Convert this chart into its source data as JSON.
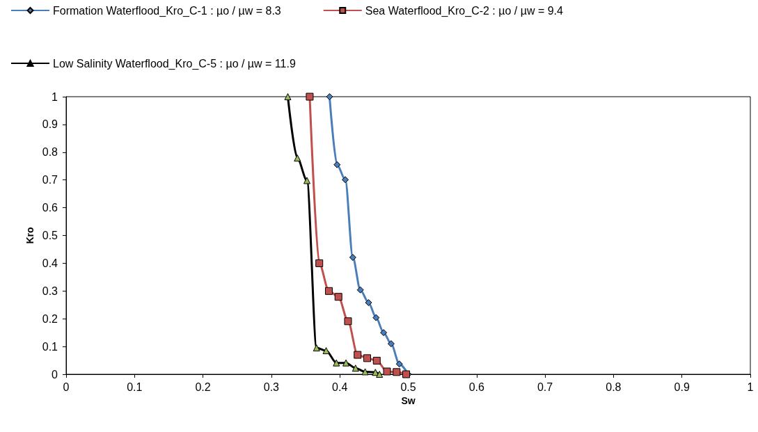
{
  "chart_data": {
    "type": "line",
    "xlabel": "Sw",
    "ylabel": "Kro",
    "xlim": [
      0,
      1
    ],
    "ylim": [
      0,
      1
    ],
    "xticks": [
      0,
      0.1,
      0.2,
      0.3,
      0.4,
      0.5,
      0.6,
      0.7,
      0.8,
      0.9,
      1
    ],
    "yticks": [
      0,
      0.1,
      0.2,
      0.3,
      0.4,
      0.5,
      0.6,
      0.7,
      0.8,
      0.9,
      1
    ],
    "grid": false,
    "legend": "top left",
    "line_style": "solid",
    "series": [
      {
        "name": "Formation Waterflood_Kro_C-1 : µo / µw = 8.3",
        "color": "#4a7ebb",
        "marker": "diamond",
        "x": [
          0.385,
          0.396,
          0.408,
          0.419,
          0.43,
          0.442,
          0.453,
          0.464,
          0.475,
          0.487,
          0.5
        ],
        "values": [
          1,
          0.755,
          0.701,
          0.421,
          0.304,
          0.258,
          0.204,
          0.15,
          0.11,
          0.037,
          0
        ]
      },
      {
        "name": "Sea Waterflood_Kro_C-2 : µo / µw = 9.4",
        "color": "#c0504d",
        "marker": "square",
        "x": [
          0.356,
          0.37,
          0.384,
          0.398,
          0.412,
          0.426,
          0.44,
          0.454,
          0.469,
          0.483,
          0.497
        ],
        "values": [
          1,
          0.4,
          0.3,
          0.279,
          0.191,
          0.07,
          0.058,
          0.049,
          0.01,
          0.008,
          0
        ]
      },
      {
        "name": "Low Salinity Waterflood_Kro_C-5 : µo / µw = 11.9",
        "color": "#000000",
        "marker": "triangle",
        "colors": [
          "#9bbb59",
          "#9bbb59",
          "#9bbb59",
          "#9bbb59",
          "#9bbb59",
          "#9bbb59",
          "#9bbb59",
          "#9bbb59",
          "#9bbb59",
          "#9bbb59",
          "#9bbb59"
        ],
        "x": [
          0.324,
          0.338,
          0.352,
          0.366,
          0.38,
          0.395,
          0.409,
          0.423,
          0.437,
          0.452,
          0.458
        ],
        "values": [
          1,
          0.779,
          0.698,
          0.095,
          0.085,
          0.041,
          0.041,
          0.022,
          0.009,
          0.007,
          0
        ]
      }
    ]
  }
}
